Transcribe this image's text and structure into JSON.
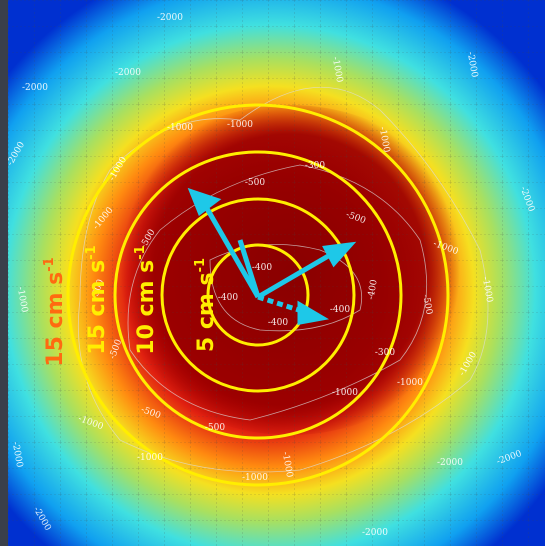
{
  "contour_labels": [
    "-2000",
    "-2000",
    "-2000",
    "-2000",
    "-1000",
    "-1000",
    "-1000",
    "-1000",
    "-1000",
    "-1000",
    "-2000",
    "-2000",
    "-500",
    "-300",
    "-500",
    "-1000",
    "-500",
    "-500",
    "-400",
    "-400",
    "-400",
    "-400",
    "-400",
    "-500",
    "-1000",
    "-300",
    "-1000",
    "-1000",
    "-500",
    "-1000",
    "-500",
    "-1000",
    "-500",
    "-1000",
    "-1000",
    "-1000",
    "-2000",
    "-2000",
    "-2000",
    "-2000",
    "-2000",
    "-1000"
  ],
  "ring_labels": [
    {
      "text": "5 cm s",
      "sup": "-1"
    },
    {
      "text": "10 cm s",
      "sup": "-1"
    },
    {
      "text": "15 cm s",
      "sup": "-1"
    },
    {
      "text": "15 cm s",
      "sup": "-1"
    }
  ]
}
